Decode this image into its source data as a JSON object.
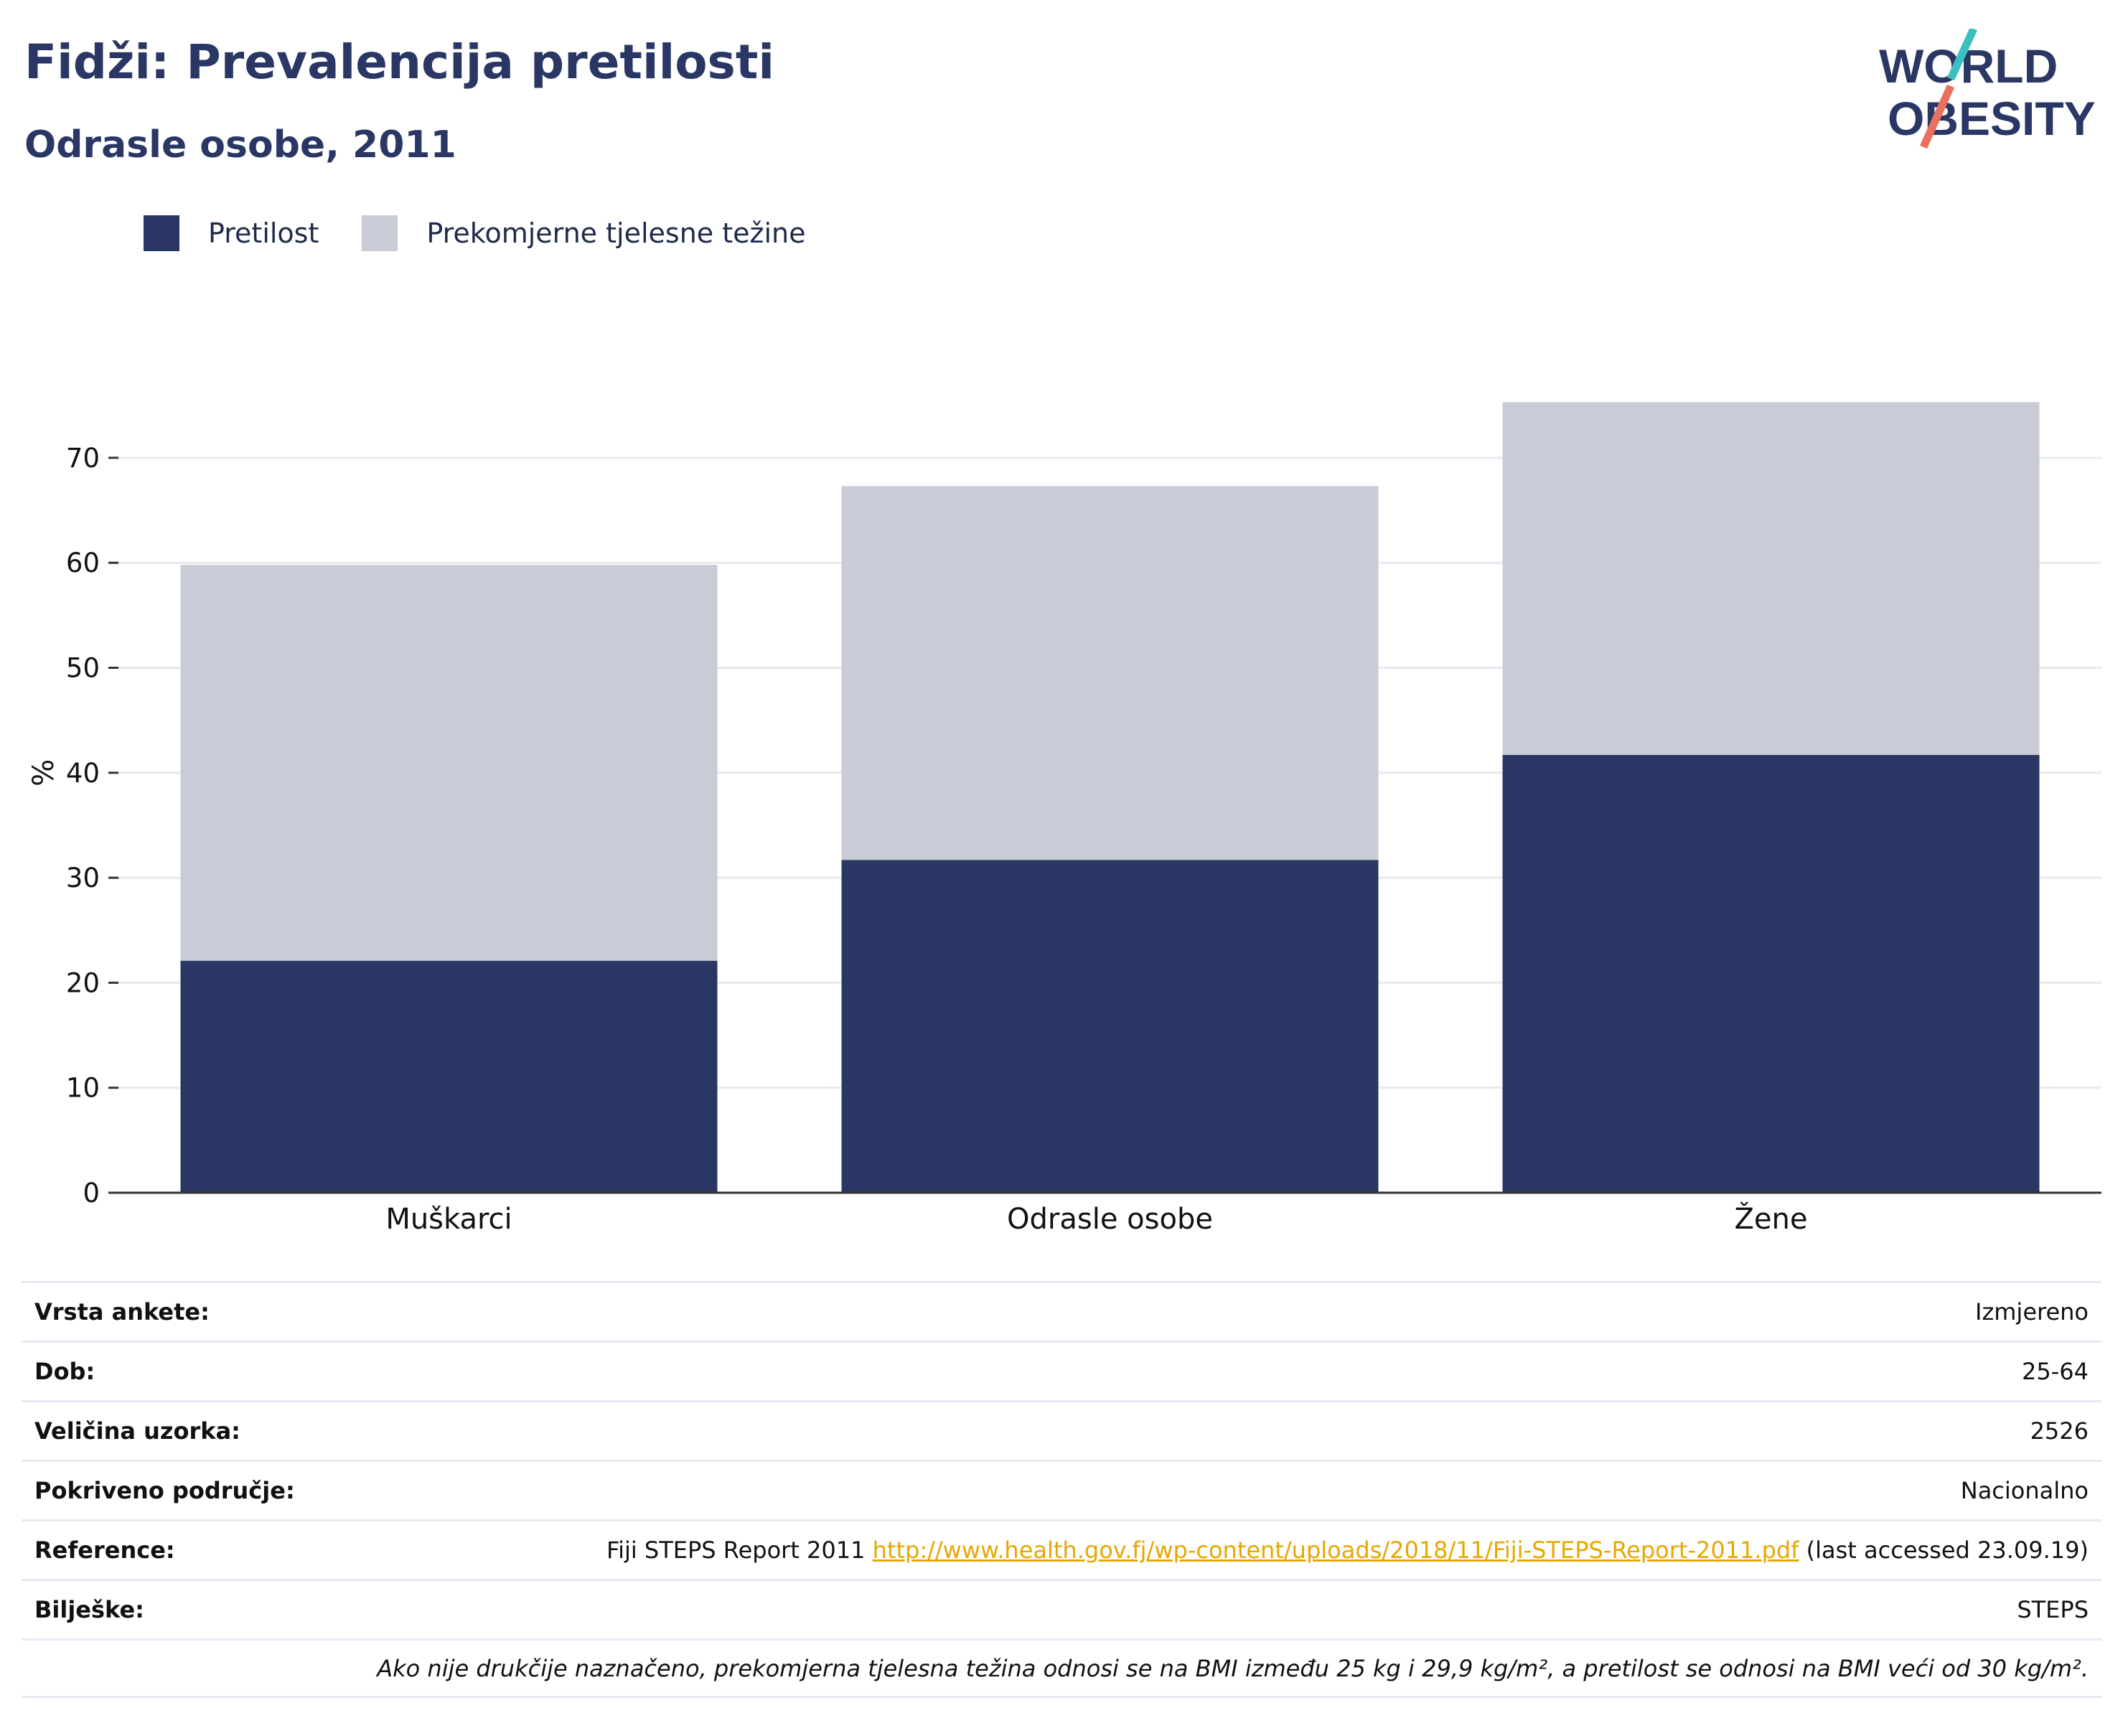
{
  "header": {
    "title": "Fidži: Prevalencija pretilosti",
    "subtitle": "Odrasle osobe, 2011"
  },
  "logo": {
    "line1": "WORLD",
    "line2": "OBESITY",
    "slash_colors": [
      "#3bbfbf",
      "#e8715f"
    ]
  },
  "legend": [
    {
      "label": "Pretilost",
      "color": "#2a3764"
    },
    {
      "label": "Prekomjerne tjelesne težine",
      "color": "#c9cbd6"
    }
  ],
  "chart_data": {
    "type": "bar",
    "stacked": true,
    "categories": [
      "Muškarci",
      "Odrasle osobe",
      "Žene"
    ],
    "series": [
      {
        "name": "Pretilost",
        "color": "#2a3764",
        "values": [
          22.1,
          31.7,
          41.7
        ]
      },
      {
        "name": "Prekomjerne tjelesne težine",
        "color": "#c9cbd6",
        "values": [
          37.7,
          35.6,
          33.6
        ]
      }
    ],
    "ylabel": "%",
    "ylim": [
      0,
      80
    ],
    "yticks": [
      0,
      10,
      20,
      30,
      40,
      50,
      60,
      70
    ],
    "grid": true,
    "legend_position": "top-left"
  },
  "info": [
    {
      "key": "Vrsta ankete:",
      "value": "Izmjereno"
    },
    {
      "key": "Dob:",
      "value": "25-64"
    },
    {
      "key": "Veličina uzorka:",
      "value": "2526"
    },
    {
      "key": "Pokriveno područje:",
      "value": "Nacionalno"
    }
  ],
  "reference": {
    "key": "Reference:",
    "prefix": "Fiji STEPS Report 2011 ",
    "link": "http://www.health.gov.fj/wp-content/uploads/2018/11/Fiji-STEPS-Report-2011.pdf",
    "suffix": " (last accessed 23.09.19)"
  },
  "notes": {
    "key": "Bilješke:",
    "value": "STEPS"
  },
  "footnote": "Ako nije drukčije naznačeno, prekomjerna tjelesna težina odnosi se na BMI između 25 kg i 29,9 kg/m², a pretilost se odnosi na BMI veći od 30 kg/m²."
}
